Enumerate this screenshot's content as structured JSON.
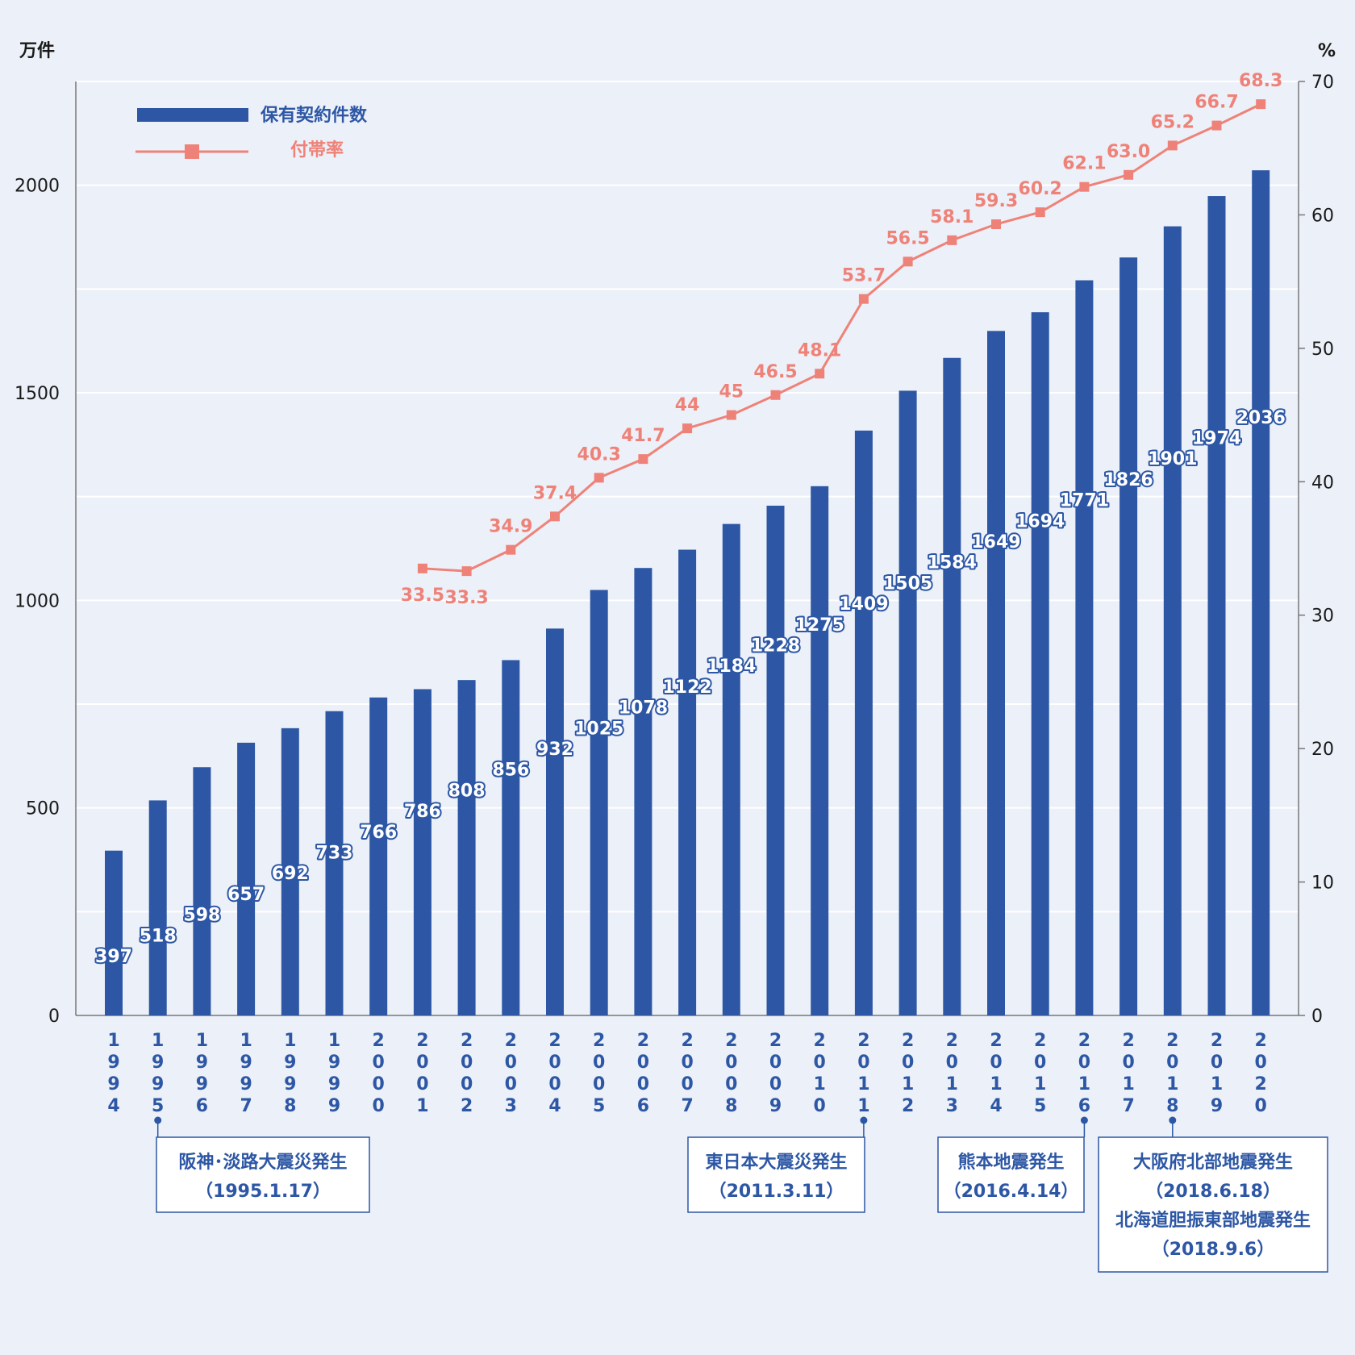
{
  "chart_data": {
    "type": "bar",
    "ylabel_left": "万件",
    "ylabel_right": "%",
    "ylim_left": [
      0,
      2250
    ],
    "ylim_right": [
      0,
      70
    ],
    "yticks_left": [
      "0",
      "500",
      "1000",
      "1500",
      "2000"
    ],
    "yticks_right": [
      "0",
      "10",
      "20",
      "30",
      "40",
      "50",
      "60",
      "70"
    ],
    "grid": true,
    "legend_position": "top-left",
    "categories": [
      "1994",
      "1995",
      "1996",
      "1997",
      "1998",
      "1999",
      "2000",
      "2001",
      "2002",
      "2003",
      "2004",
      "2005",
      "2006",
      "2007",
      "2008",
      "2009",
      "2010",
      "2011",
      "2012",
      "2013",
      "2014",
      "2015",
      "2016",
      "2017",
      "2018",
      "2019",
      "2020"
    ],
    "series": [
      {
        "name": "保有契約件数",
        "type": "bar",
        "axis": "left",
        "color": "#2d57a5",
        "values": [
          397,
          518,
          598,
          657,
          692,
          733,
          766,
          786,
          808,
          856,
          932,
          1025,
          1078,
          1122,
          1184,
          1228,
          1275,
          1409,
          1505,
          1584,
          1649,
          1694,
          1771,
          1826,
          1901,
          1974,
          2036
        ],
        "labels": [
          "397",
          "518",
          "598",
          "657",
          "692",
          "733",
          "766",
          "786",
          "808",
          "856",
          "932",
          "1025",
          "1078",
          "1122",
          "1184",
          "1228",
          "1275",
          "1409",
          "1505",
          "1584",
          "1649",
          "1694",
          "1771",
          "1826",
          "1901",
          "1974",
          "2036"
        ]
      },
      {
        "name": "付帯率",
        "type": "line",
        "axis": "right",
        "color": "#ef8278",
        "values": [
          null,
          null,
          null,
          null,
          null,
          null,
          null,
          33.5,
          33.3,
          34.9,
          37.4,
          40.3,
          41.7,
          44,
          45,
          46.5,
          48.1,
          53.7,
          56.5,
          58.1,
          59.3,
          60.2,
          62.1,
          63.0,
          65.2,
          66.7,
          68.3
        ],
        "labels": [
          null,
          null,
          null,
          null,
          null,
          null,
          null,
          "33.5",
          "33.3",
          "34.9",
          "37.4",
          "40.3",
          "41.7",
          "44",
          "45",
          "46.5",
          "48.1",
          "53.7",
          "56.5",
          "58.1",
          "59.3",
          "60.2",
          "62.1",
          "63.0",
          "65.2",
          "66.7",
          "68.3"
        ]
      }
    ],
    "annotations": [
      {
        "year": "1995",
        "lines": [
          "阪神･淡路大震災発生",
          "（1995.1.17）"
        ]
      },
      {
        "year": "2011",
        "lines": [
          "東日本大震災発生",
          "（2011.3.11）"
        ]
      },
      {
        "year": "2016",
        "lines": [
          "熊本地震発生",
          "（2016.4.14）"
        ]
      },
      {
        "year": "2018",
        "lines": [
          "大阪府北部地震発生",
          "（2018.6.18）",
          "北海道胆振東部地震発生",
          "（2018.9.6）"
        ]
      }
    ]
  }
}
